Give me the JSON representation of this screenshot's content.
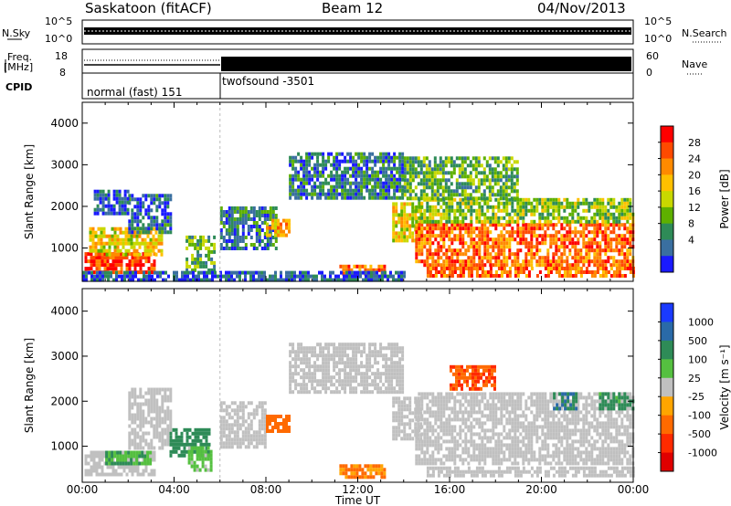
{
  "header": {
    "station": "Saskatoon (fitACF)",
    "beam": "Beam 12",
    "date": "04/Nov/2013"
  },
  "top_panels": {
    "nsky_label": "N.Sky",
    "nsky_ticks": [
      "10^5",
      "10^0"
    ],
    "nsearch_label": "N.Search",
    "nsearch_ticks": [
      "10^5",
      "10^0"
    ],
    "freq_label_1": "Freq.",
    "freq_label_2": "[MHz]",
    "freq_ticks": [
      "18",
      "8"
    ],
    "nave_label": "Nave",
    "nave_ticks": [
      "60",
      "0"
    ],
    "cpid_label": "CPID",
    "cpid_segments": [
      {
        "name": "normal (fast) 151",
        "start_hour": 0,
        "end_hour": 6
      },
      {
        "name": "twofsound -3501",
        "start_hour": 6,
        "end_hour": 24
      }
    ]
  },
  "chart_data": [
    {
      "type": "heatmap",
      "name": "power-panel",
      "ylabel": "Slant Range [km]",
      "xlabel": "Time UT",
      "xlim": [
        0,
        24
      ],
      "ylim": [
        200,
        4500
      ],
      "x_ticks": [
        "00:00",
        "04:00",
        "08:00",
        "12:00",
        "16:00",
        "20:00",
        "00:00"
      ],
      "y_ticks": [
        1000,
        2000,
        3000,
        4000
      ],
      "colorbar": {
        "label": "Power [dB]",
        "ticks": [
          "28",
          "24",
          "20",
          "16",
          "12",
          "8",
          "4"
        ],
        "colors": [
          "#ff0000",
          "#ff4a00",
          "#ff8a00",
          "#ffc000",
          "#c8d800",
          "#5eb000",
          "#2e8b57",
          "#3a6fa0",
          "#1a1aff"
        ]
      },
      "regions": [
        {
          "t0": 0.1,
          "t1": 3.2,
          "r0": 400,
          "r1": 900,
          "v": 26
        },
        {
          "t0": 0.3,
          "t1": 3.5,
          "r0": 800,
          "r1": 1500,
          "v": 18
        },
        {
          "t0": 2.0,
          "t1": 3.8,
          "r0": 1400,
          "r1": 2300,
          "v": 7
        },
        {
          "t0": 0.5,
          "t1": 2.0,
          "r0": 1800,
          "r1": 2400,
          "v": 6
        },
        {
          "t0": 4.5,
          "t1": 5.8,
          "r0": 500,
          "r1": 1300,
          "v": 12
        },
        {
          "t0": 6.0,
          "t1": 8.5,
          "r0": 1000,
          "r1": 2000,
          "v": 8
        },
        {
          "t0": 8.0,
          "t1": 9.0,
          "r0": 1300,
          "r1": 1700,
          "v": 20
        },
        {
          "t0": 9.0,
          "t1": 14.0,
          "r0": 2200,
          "r1": 3300,
          "v": 8
        },
        {
          "t0": 11.2,
          "t1": 13.2,
          "r0": 350,
          "r1": 600,
          "v": 24
        },
        {
          "t0": 13.5,
          "t1": 14.8,
          "r0": 1200,
          "r1": 2100,
          "v": 18
        },
        {
          "t0": 14.5,
          "t1": 24.0,
          "r0": 600,
          "r1": 1600,
          "v": 24
        },
        {
          "t0": 14.5,
          "t1": 24.0,
          "r0": 1600,
          "r1": 2200,
          "v": 14
        },
        {
          "t0": 15.0,
          "t1": 24.0,
          "r0": 350,
          "r1": 550,
          "v": 24
        },
        {
          "t0": 14.0,
          "t1": 19.0,
          "r0": 2200,
          "r1": 3200,
          "v": 12
        },
        {
          "t0": 0.0,
          "t1": 14.0,
          "r0": 250,
          "r1": 450,
          "v": 6
        }
      ]
    },
    {
      "type": "heatmap",
      "name": "velocity-panel",
      "ylabel": "Slant Range [km]",
      "xlabel": "Time UT",
      "xlim": [
        0,
        24
      ],
      "ylim": [
        200,
        4500
      ],
      "x_ticks": [
        "00:00",
        "04:00",
        "08:00",
        "12:00",
        "16:00",
        "20:00",
        "00:00"
      ],
      "y_ticks": [
        1000,
        2000,
        3000,
        4000
      ],
      "colorbar": {
        "label": "Velocity [m s⁻¹]",
        "ticks": [
          "1000",
          "500",
          "100",
          "25",
          "-25",
          "-100",
          "-500",
          "-1000"
        ],
        "colors": [
          "#1a3aff",
          "#2a6aa8",
          "#2e8b57",
          "#55c040",
          "#c0c0c0",
          "#ffa500",
          "#ff6a00",
          "#ff2a00",
          "#e00000"
        ]
      },
      "regions": [
        {
          "t0": 0.1,
          "t1": 3.2,
          "r0": 400,
          "r1": 900,
          "v": 0
        },
        {
          "t0": 1.0,
          "t1": 3.0,
          "r0": 600,
          "r1": 900,
          "v": 60
        },
        {
          "t0": 2.0,
          "t1": 3.8,
          "r0": 1000,
          "r1": 2300,
          "v": 0
        },
        {
          "t0": 3.8,
          "t1": 5.5,
          "r0": 800,
          "r1": 1400,
          "v": 100
        },
        {
          "t0": 4.6,
          "t1": 5.6,
          "r0": 500,
          "r1": 1000,
          "v": 40
        },
        {
          "t0": 6.0,
          "t1": 8.0,
          "r0": 1000,
          "r1": 2000,
          "v": 0
        },
        {
          "t0": 8.0,
          "t1": 9.0,
          "r0": 1300,
          "r1": 1700,
          "v": -200
        },
        {
          "t0": 9.0,
          "t1": 14.0,
          "r0": 2200,
          "r1": 3300,
          "v": 0
        },
        {
          "t0": 11.2,
          "t1": 13.2,
          "r0": 350,
          "r1": 600,
          "v": -100
        },
        {
          "t0": 13.5,
          "t1": 14.8,
          "r0": 1200,
          "r1": 2100,
          "v": 0
        },
        {
          "t0": 14.5,
          "t1": 24.0,
          "r0": 600,
          "r1": 2200,
          "v": 0
        },
        {
          "t0": 15.0,
          "t1": 24.0,
          "r0": 350,
          "r1": 550,
          "v": 0
        },
        {
          "t0": 16.0,
          "t1": 18.0,
          "r0": 2300,
          "r1": 2800,
          "v": -300
        },
        {
          "t0": 20.5,
          "t1": 21.5,
          "r0": 1800,
          "r1": 2200,
          "v": 300
        },
        {
          "t0": 22.5,
          "t1": 24.0,
          "r0": 1800,
          "r1": 2200,
          "v": 80
        }
      ]
    }
  ]
}
